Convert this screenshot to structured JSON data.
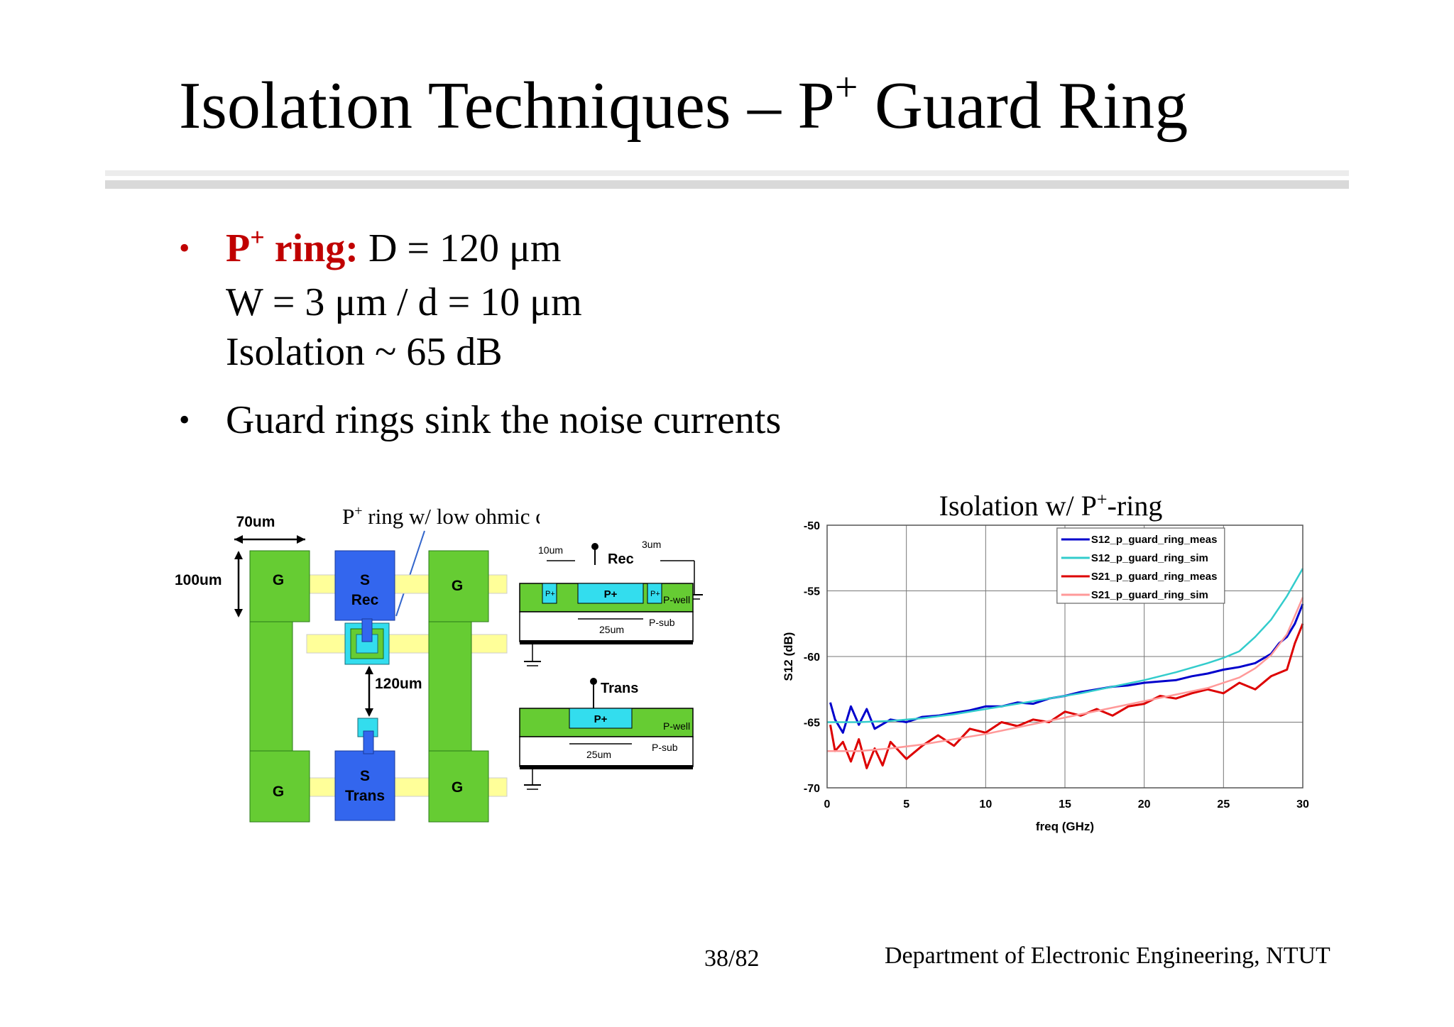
{
  "slide": {
    "title_pre": "Isolation Techniques – P",
    "title_sup": "+",
    "title_post": " Guard Ring",
    "bullets": {
      "b1_label_pre": "P",
      "b1_label_sup": "+",
      "b1_label_post": " ring:",
      "b1_text": " D = 120 μm",
      "b1_line2": "W = 3 μm / d = 10 μm",
      "b1_line3": "Isolation ~ 65 dB",
      "b2_text": "Guard rings sink the noise currents",
      "bullet_glyph": "•"
    },
    "footer": {
      "page": "38/82",
      "dept": "Department of Electronic Engineering, NTUT"
    },
    "colors": {
      "accent_red": "#c00000",
      "pad_green": "#66cc33",
      "blue": "#3366ee",
      "cyan": "#33ddee",
      "yellow": "#ffff99"
    }
  },
  "layout_fig": {
    "annotation_pre": "P",
    "annotation_sup": "+",
    "annotation_post": " ring w/ low ohmic contact",
    "dim_width": "70um",
    "dim_height": "100um",
    "dim_spacing": "120um",
    "pad_g": "G",
    "rec_s": "S",
    "rec_label": "Rec",
    "trans_s": "S",
    "trans_label": "Trans"
  },
  "cross_sections": {
    "top": {
      "label": "Rec",
      "dim_left": "10um",
      "dim_right": "3um",
      "dim_center": "25um",
      "p_plus": "P+",
      "p_plus_small": "P+",
      "p_well": "P-well",
      "p_sub": "P-sub"
    },
    "bottom": {
      "label": "Trans",
      "dim_center": "25um",
      "p_plus": "P+",
      "p_well": "P-well",
      "p_sub": "P-sub"
    }
  },
  "chart_data": {
    "type": "line",
    "title_pre": "Isolation w/ P",
    "title_sup": "+",
    "title_post": "-ring",
    "xlabel": "freq (GHz)",
    "ylabel": "S12 (dB)",
    "xlim": [
      0,
      30
    ],
    "ylim": [
      -70,
      -50
    ],
    "xticks": [
      "0",
      "5",
      "10",
      "15",
      "20",
      "25",
      "30"
    ],
    "yticks": [
      "-50",
      "-55",
      "-60",
      "-65",
      "-70"
    ],
    "grid": true,
    "legend_position": "top-right",
    "series": [
      {
        "name": "S12_p_guard_ring_meas",
        "color": "#0000cc",
        "x": [
          0.2,
          0.5,
          1,
          1.5,
          2,
          2.5,
          3,
          4,
          5,
          6,
          7,
          8,
          9,
          10,
          11,
          12,
          13,
          14,
          15,
          16,
          17,
          18,
          19,
          20,
          21,
          22,
          23,
          24,
          25,
          26,
          27,
          28,
          28.5,
          29,
          29.5,
          30
        ],
        "y": [
          -63.5,
          -64.8,
          -65.8,
          -63.8,
          -65.2,
          -64.0,
          -65.5,
          -64.8,
          -65.0,
          -64.6,
          -64.5,
          -64.3,
          -64.1,
          -63.8,
          -63.8,
          -63.5,
          -63.6,
          -63.2,
          -63.0,
          -62.7,
          -62.5,
          -62.3,
          -62.2,
          -62.0,
          -61.9,
          -61.8,
          -61.5,
          -61.3,
          -61.0,
          -60.8,
          -60.5,
          -59.8,
          -59.0,
          -58.5,
          -57.5,
          -56.0
        ]
      },
      {
        "name": "S12_p_guard_ring_sim",
        "color": "#33cccc",
        "x": [
          0,
          2,
          4,
          6,
          8,
          10,
          12,
          14,
          16,
          18,
          20,
          22,
          24,
          25,
          26,
          27,
          28,
          29,
          30
        ],
        "y": [
          -65.0,
          -65.0,
          -64.9,
          -64.7,
          -64.4,
          -64.0,
          -63.6,
          -63.2,
          -62.8,
          -62.3,
          -61.8,
          -61.2,
          -60.5,
          -60.1,
          -59.6,
          -58.5,
          -57.2,
          -55.4,
          -53.3
        ]
      },
      {
        "name": "S21_p_guard_ring_meas",
        "color": "#dd0000",
        "x": [
          0.2,
          0.5,
          1,
          1.5,
          2,
          2.5,
          3,
          3.5,
          4,
          5,
          6,
          7,
          8,
          9,
          10,
          11,
          12,
          13,
          14,
          15,
          16,
          17,
          18,
          19,
          20,
          21,
          22,
          23,
          24,
          25,
          26,
          27,
          28,
          29,
          29.5,
          30
        ],
        "y": [
          -65.2,
          -67.2,
          -66.5,
          -68.0,
          -66.3,
          -68.5,
          -67.0,
          -68.3,
          -66.5,
          -67.8,
          -66.8,
          -66.0,
          -66.8,
          -65.5,
          -65.8,
          -65.0,
          -65.3,
          -64.8,
          -65.0,
          -64.2,
          -64.5,
          -64.0,
          -64.5,
          -63.8,
          -63.6,
          -63.0,
          -63.2,
          -62.8,
          -62.5,
          -62.8,
          -62.0,
          -62.5,
          -61.5,
          -61.0,
          -59.0,
          -57.5
        ]
      },
      {
        "name": "S21_p_guard_ring_sim",
        "color": "#ff9999",
        "x": [
          0,
          2,
          4,
          6,
          8,
          10,
          12,
          14,
          16,
          18,
          20,
          22,
          24,
          25,
          26,
          27,
          28,
          29,
          30
        ],
        "y": [
          -67.2,
          -67.2,
          -67.0,
          -66.7,
          -66.3,
          -65.9,
          -65.4,
          -64.9,
          -64.4,
          -63.9,
          -63.4,
          -62.9,
          -62.4,
          -62.0,
          -61.6,
          -60.9,
          -59.9,
          -58.3,
          -55.5
        ]
      }
    ]
  }
}
